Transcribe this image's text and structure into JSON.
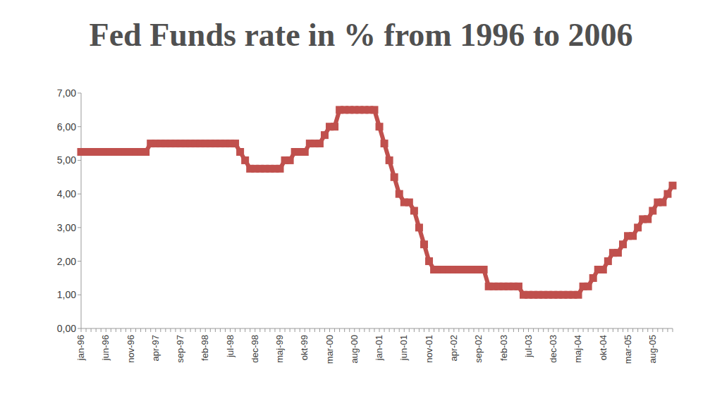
{
  "chart_data": {
    "type": "line",
    "title": "Fed Funds rate in % from 1996 to 2006",
    "categories": [
      "jan-96",
      null,
      null,
      null,
      null,
      "jun-96",
      null,
      null,
      null,
      null,
      "nov-96",
      null,
      null,
      null,
      null,
      "apr-97",
      null,
      null,
      null,
      null,
      "sep-97",
      null,
      null,
      null,
      null,
      "feb-98",
      null,
      null,
      null,
      null,
      "jul-98",
      null,
      null,
      null,
      null,
      "dec-98",
      null,
      null,
      null,
      null,
      "maj-99",
      null,
      null,
      null,
      null,
      "okt-99",
      null,
      null,
      null,
      null,
      "mar-00",
      null,
      null,
      null,
      null,
      "aug-00",
      null,
      null,
      null,
      null,
      "jan-01",
      null,
      null,
      null,
      null,
      "jun-01",
      null,
      null,
      null,
      null,
      "nov-01",
      null,
      null,
      null,
      null,
      "apr-02",
      null,
      null,
      null,
      null,
      "sep-02",
      null,
      null,
      null,
      null,
      "feb-03",
      null,
      null,
      null,
      null,
      "jul-03",
      null,
      null,
      null,
      null,
      "dec-03",
      null,
      null,
      null,
      null,
      "maj-04",
      null,
      null,
      null,
      null,
      "okt-04",
      null,
      null,
      null,
      null,
      "mar-05",
      null,
      null,
      null,
      null,
      "aug-05",
      null,
      null,
      null,
      null
    ],
    "values": [
      5.25,
      5.25,
      5.25,
      5.25,
      5.25,
      5.25,
      5.25,
      5.25,
      5.25,
      5.25,
      5.25,
      5.25,
      5.25,
      5.25,
      5.5,
      5.5,
      5.5,
      5.5,
      5.5,
      5.5,
      5.5,
      5.5,
      5.5,
      5.5,
      5.5,
      5.5,
      5.5,
      5.5,
      5.5,
      5.5,
      5.5,
      5.5,
      5.25,
      5.0,
      4.75,
      4.75,
      4.75,
      4.75,
      4.75,
      4.75,
      4.75,
      5.0,
      5.0,
      5.25,
      5.25,
      5.25,
      5.5,
      5.5,
      5.5,
      5.75,
      6.0,
      6.0,
      6.5,
      6.5,
      6.5,
      6.5,
      6.5,
      6.5,
      6.5,
      6.5,
      6.0,
      5.5,
      5.0,
      4.5,
      4.0,
      3.75,
      3.75,
      3.5,
      3.0,
      2.5,
      2.0,
      1.75,
      1.75,
      1.75,
      1.75,
      1.75,
      1.75,
      1.75,
      1.75,
      1.75,
      1.75,
      1.75,
      1.25,
      1.25,
      1.25,
      1.25,
      1.25,
      1.25,
      1.25,
      1.0,
      1.0,
      1.0,
      1.0,
      1.0,
      1.0,
      1.0,
      1.0,
      1.0,
      1.0,
      1.0,
      1.0,
      1.25,
      1.25,
      1.5,
      1.75,
      1.75,
      2.0,
      2.25,
      2.25,
      2.5,
      2.75,
      2.75,
      3.0,
      3.25,
      3.25,
      3.5,
      3.75,
      3.75,
      4.0,
      4.25
    ],
    "color": "#c0504d",
    "marker": "square",
    "ylim": [
      0,
      7
    ],
    "yticks": [
      {
        "value": 0,
        "label": "0,00"
      },
      {
        "value": 1,
        "label": "1,00"
      },
      {
        "value": 2,
        "label": "2,00"
      },
      {
        "value": 3,
        "label": "3,00"
      },
      {
        "value": 4,
        "label": "4,00"
      },
      {
        "value": 5,
        "label": "5,00"
      },
      {
        "value": 6,
        "label": "6,00"
      },
      {
        "value": 7,
        "label": "7,00"
      }
    ],
    "grid": false
  }
}
